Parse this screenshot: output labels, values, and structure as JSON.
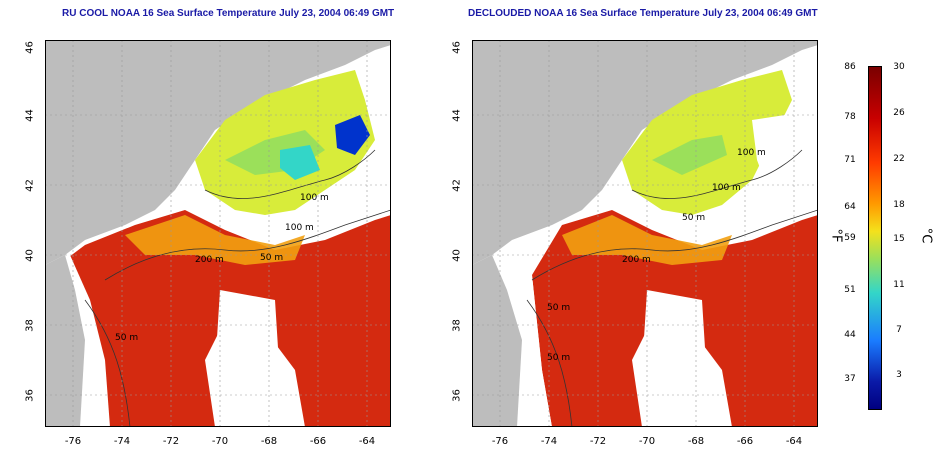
{
  "panels": [
    {
      "id": "left",
      "title": "RU COOL NOAA 16 Sea Surface Temperature July 23, 2004 06:49 GMT"
    },
    {
      "id": "right",
      "title": "DECLOUDED NOAA 16 Sea Surface Temperature July 23, 2004 06:49 GMT"
    }
  ],
  "axes": {
    "lat_ticks": [
      "46",
      "44",
      "42",
      "40",
      "38",
      "36"
    ],
    "lon_ticks": [
      "-76",
      "-74",
      "-72",
      "-70",
      "-68",
      "-66",
      "-64"
    ]
  },
  "contour_labels": [
    "100 m",
    "100 m",
    "50 m",
    "200 m",
    "50 m",
    "50 m"
  ],
  "colorbar": {
    "f_ticks": [
      "86",
      "78",
      "71",
      "64",
      "59",
      "51",
      "44",
      "37"
    ],
    "c_ticks": [
      "30",
      "26",
      "22",
      "18",
      "15",
      "11",
      "7",
      "3"
    ],
    "f_unit": "°F",
    "c_unit": "°C",
    "colors": [
      "#7a0000",
      "#c80000",
      "#ff3b00",
      "#ff9a00",
      "#f4e11c",
      "#9be05a",
      "#33d6c8",
      "#1a7cff",
      "#0a1aa8",
      "#000080"
    ]
  },
  "colors": {
    "land": "#bdbdbd",
    "cloud": "#ffffff",
    "warm": "#d42a10",
    "mid": "#f2a011",
    "cool": "#d8ec3a",
    "cold": "#0033cc",
    "title": "#1a1aa6"
  }
}
